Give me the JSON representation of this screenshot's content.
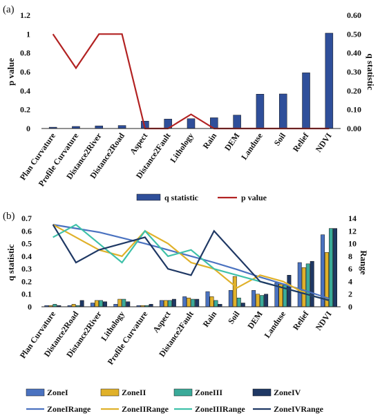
{
  "chart_data": [
    {
      "panel_label": "(a)",
      "type": "bar",
      "categories": [
        "Plan Curvature",
        "Profile Curvature",
        "Distance2River",
        "Distance2Road",
        "Aspect",
        "Distance2Fault",
        "Lithology",
        "Rain",
        "DEM",
        "Landuse",
        "Soil",
        "Relief",
        "NDVI"
      ],
      "series": [
        {
          "name": "q statistic",
          "kind": "bar",
          "axis": "right",
          "color": "#2f4f9a",
          "values": [
            0.007,
            0.011,
            0.014,
            0.016,
            0.039,
            0.05,
            0.052,
            0.057,
            0.071,
            0.182,
            0.183,
            0.295,
            0.505
          ]
        },
        {
          "name": "p value",
          "kind": "line",
          "axis": "left",
          "color": "#b22222",
          "values": [
            1.0,
            0.64,
            1.0,
            1.0,
            0.0,
            0.0,
            0.15,
            0.0,
            0.0,
            0.0,
            0.0,
            0.0,
            0.0
          ]
        }
      ],
      "ylabel_left": "p value",
      "ylabel_right": "q statistic",
      "yticks_left": [
        "0",
        "0.2",
        "0.4",
        "0.6",
        "0.8",
        "1",
        "1.2"
      ],
      "yticks_right": [
        "0.00",
        "0.10",
        "0.20",
        "0.30",
        "0.40",
        "0.50",
        "0.60"
      ],
      "ylim_left": [
        0,
        1.2
      ],
      "ylim_right": [
        0,
        0.6
      ],
      "grid": false,
      "legend": "bottom"
    },
    {
      "panel_label": "(b)",
      "type": "bar",
      "categories": [
        "Plan Curvature",
        "Distance2Road",
        "Distance2River",
        "Lithology",
        "Profile Curvature",
        "Aspect",
        "Distance2Fault",
        "Rain",
        "Soil",
        "DEM",
        "Landuse",
        "Relief",
        "NDVI"
      ],
      "series": [
        {
          "name": "ZoneI",
          "kind": "bar",
          "axis": "left",
          "color": "#4a72c0",
          "values": [
            0.01,
            0.01,
            0.03,
            0.02,
            0.01,
            0.05,
            0.08,
            0.12,
            0.13,
            0.13,
            0.19,
            0.35,
            0.57
          ]
        },
        {
          "name": "ZoneII",
          "kind": "bar",
          "axis": "left",
          "color": "#e0b12a",
          "values": [
            0.01,
            0.02,
            0.05,
            0.06,
            0.01,
            0.05,
            0.07,
            0.08,
            0.24,
            0.1,
            0.18,
            0.31,
            0.43
          ]
        },
        {
          "name": "ZoneIII",
          "kind": "bar",
          "axis": "left",
          "color": "#3aaa99",
          "values": [
            0.02,
            0.01,
            0.05,
            0.06,
            0.01,
            0.05,
            0.06,
            0.05,
            0.07,
            0.09,
            0.17,
            0.34,
            0.62
          ]
        },
        {
          "name": "ZoneIV",
          "kind": "bar",
          "axis": "left",
          "color": "#1f3864",
          "values": [
            0.01,
            0.05,
            0.04,
            0.04,
            0.02,
            0.06,
            0.06,
            0.02,
            0.03,
            0.1,
            0.25,
            0.36,
            0.62
          ]
        },
        {
          "name": "ZoneIRange",
          "kind": "line",
          "axis": "right",
          "color": "#4a72c0",
          "values": [
            13,
            12.4,
            11.8,
            10.9,
            10.0,
            9.0,
            8.0,
            7.0,
            5.9,
            4.7,
            3.6,
            2.5,
            1.3
          ]
        },
        {
          "name": "ZoneIIRange",
          "kind": "line",
          "axis": "right",
          "color": "#e0b12a",
          "values": [
            13,
            11,
            9,
            8,
            12,
            10,
            7,
            6,
            3,
            5,
            4,
            2,
            1
          ]
        },
        {
          "name": "ZoneIIIRange",
          "kind": "line",
          "axis": "right",
          "color": "#3fc1a9",
          "values": [
            11,
            13,
            10,
            7,
            12,
            8,
            9,
            6,
            5,
            4,
            3,
            2,
            1
          ]
        },
        {
          "name": "ZoneIVRange",
          "kind": "line",
          "axis": "right",
          "color": "#1f3864",
          "values": [
            13,
            7,
            9,
            10,
            11,
            6,
            5,
            12,
            8,
            4,
            3,
            2,
            1
          ]
        }
      ],
      "ylabel_left": "q statistic",
      "ylabel_right": "Range",
      "yticks_left": [
        "0",
        "0.1",
        "0.2",
        "0.3",
        "0.4",
        "0.5",
        "0.6",
        "0.7"
      ],
      "yticks_right": [
        "0",
        "2",
        "4",
        "6",
        "8",
        "10",
        "12",
        "14"
      ],
      "ylim_left": [
        0,
        0.7
      ],
      "ylim_right": [
        0,
        14
      ],
      "grid": false,
      "legend": "bottom"
    }
  ]
}
